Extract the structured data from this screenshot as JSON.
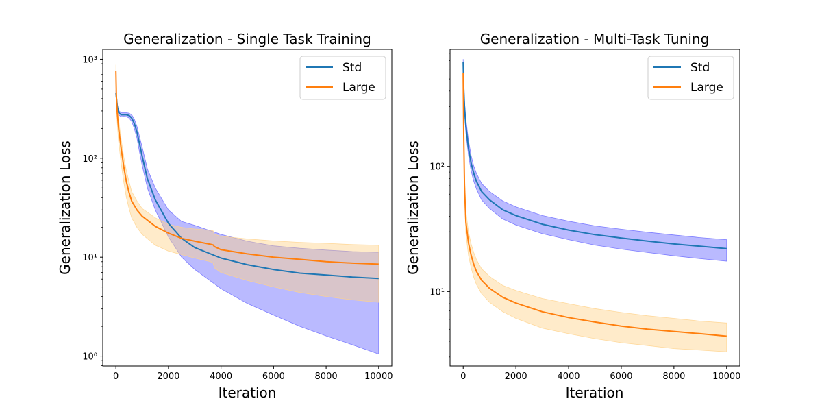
{
  "chart_data": [
    {
      "type": "line",
      "title": "Generalization - Single Task Training",
      "xlabel": "Iteration",
      "ylabel": "Generalization Loss",
      "yscale": "log",
      "xlim": [
        -500,
        10500
      ],
      "ylim_log10": [
        -0.1,
        3.1
      ],
      "x_ticks": [
        0,
        2000,
        4000,
        6000,
        8000,
        10000
      ],
      "x_tick_labels": [
        "0",
        "2000",
        "4000",
        "6000",
        "8000",
        "10000"
      ],
      "y_ticks": [
        1,
        10,
        100,
        1000
      ],
      "y_tick_labels": [
        "10⁰",
        "10¹",
        "10²",
        "10³"
      ],
      "legend_position": "top-right",
      "series": [
        {
          "name": "Std",
          "color": "#1f77b4",
          "band_color": "#6666ff",
          "x": [
            0,
            50,
            100,
            200,
            300,
            400,
            500,
            600,
            700,
            800,
            900,
            1000,
            1200,
            1500,
            2000,
            2500,
            3000,
            4000,
            5000,
            6000,
            7000,
            8000,
            9000,
            10000
          ],
          "y": [
            460,
            340,
            290,
            275,
            276,
            275,
            270,
            255,
            225,
            185,
            140,
            105,
            62,
            38,
            22,
            15.5,
            12.5,
            9.8,
            8.4,
            7.5,
            6.9,
            6.6,
            6.3,
            6.1
          ],
          "lower": [
            430,
            320,
            275,
            262,
            264,
            262,
            255,
            235,
            200,
            160,
            115,
            85,
            50,
            30,
            16,
            10,
            7.5,
            4.8,
            3.4,
            2.6,
            2.0,
            1.6,
            1.3,
            1.05
          ],
          "upper": [
            490,
            360,
            305,
            288,
            288,
            288,
            285,
            275,
            250,
            210,
            165,
            130,
            78,
            50,
            30,
            23,
            21,
            17,
            14.5,
            13,
            12.3,
            11.8,
            11.4,
            11.2
          ]
        },
        {
          "name": "Large",
          "color": "#ff7f0e",
          "band_color": "#ffd28a",
          "x": [
            0,
            20,
            50,
            100,
            200,
            300,
            400,
            500,
            600,
            800,
            1000,
            1500,
            2000,
            2500,
            3000,
            3600,
            3700,
            3750,
            4000,
            5000,
            6000,
            7000,
            8000,
            9000,
            10000
          ],
          "y": [
            760,
            420,
            290,
            205,
            125,
            82,
            58,
            45,
            37,
            30,
            26,
            20.5,
            17.5,
            15.5,
            14.5,
            13.5,
            13.3,
            12.8,
            11.9,
            10.8,
            10,
            9.5,
            9.0,
            8.7,
            8.5
          ],
          "lower": [
            620,
            340,
            230,
            150,
            88,
            57,
            40,
            31,
            25,
            20,
            17,
            13.2,
            11.5,
            10.6,
            9.8,
            9.0,
            8.7,
            7.8,
            7.0,
            5.8,
            5.0,
            4.4,
            4.0,
            3.7,
            3.5
          ],
          "upper": [
            880,
            500,
            350,
            250,
            155,
            103,
            75,
            58,
            46,
            37,
            31,
            25,
            21.5,
            20,
            19.3,
            18.8,
            18.5,
            17,
            16.3,
            15.3,
            14.6,
            14.1,
            13.8,
            13.4,
            13.2
          ]
        }
      ]
    },
    {
      "type": "line",
      "title": "Generalization - Multi-Task Tuning",
      "xlabel": "Iteration",
      "ylabel": "Generalization Loss",
      "yscale": "log",
      "xlim": [
        -500,
        10500
      ],
      "ylim_log10": [
        0.405,
        2.935
      ],
      "x_ticks": [
        0,
        2000,
        4000,
        6000,
        8000,
        10000
      ],
      "x_tick_labels": [
        "0",
        "2000",
        "4000",
        "6000",
        "8000",
        "10000"
      ],
      "y_ticks": [
        10,
        100
      ],
      "y_tick_labels": [
        "10¹",
        "10²"
      ],
      "legend_position": "top-right",
      "series": [
        {
          "name": "Std",
          "color": "#1f77b4",
          "band_color": "#6666ff",
          "x": [
            0,
            20,
            50,
            100,
            200,
            300,
            400,
            500,
            700,
            1000,
            1500,
            2000,
            3000,
            4000,
            5000,
            6000,
            7000,
            8000,
            9000,
            10000
          ],
          "y": [
            680,
            420,
            300,
            210,
            140,
            106,
            88,
            76,
            63,
            54,
            45,
            40.5,
            34.5,
            31,
            28.5,
            26.8,
            25.3,
            24,
            23,
            22
          ],
          "lower": [
            620,
            380,
            270,
            185,
            123,
            92,
            76,
            66,
            54,
            46,
            38,
            34,
            29,
            26,
            23.5,
            21.8,
            20.5,
            19.3,
            18.3,
            17.5
          ],
          "upper": [
            720,
            470,
            335,
            240,
            162,
            122,
            101,
            88,
            73,
            63,
            53,
            47.5,
            40.5,
            36.5,
            33.5,
            31.5,
            29.8,
            28.3,
            27,
            26
          ]
        },
        {
          "name": "Large",
          "color": "#ff7f0e",
          "band_color": "#ffd28a",
          "x": [
            0,
            20,
            50,
            100,
            200,
            300,
            400,
            500,
            700,
            1000,
            1500,
            2000,
            3000,
            4000,
            5000,
            6000,
            7000,
            8000,
            9000,
            10000
          ],
          "y": [
            560,
            180,
            70,
            36,
            24.5,
            19.5,
            16.5,
            14.5,
            12.3,
            10.6,
            9.0,
            8.1,
            6.9,
            6.2,
            5.7,
            5.3,
            5.0,
            4.8,
            4.6,
            4.4
          ],
          "lower": [
            500,
            150,
            58,
            29,
            19.5,
            15.5,
            13,
            11.4,
            9.6,
            8.2,
            6.9,
            6.1,
            5.1,
            4.6,
            4.2,
            3.9,
            3.7,
            3.5,
            3.4,
            3.3
          ],
          "upper": [
            620,
            220,
            88,
            44,
            30,
            24,
            20.5,
            18,
            15.2,
            13.2,
            11.2,
            10.2,
            8.8,
            8.0,
            7.3,
            6.8,
            6.4,
            6.1,
            5.8,
            5.6
          ]
        }
      ]
    }
  ]
}
